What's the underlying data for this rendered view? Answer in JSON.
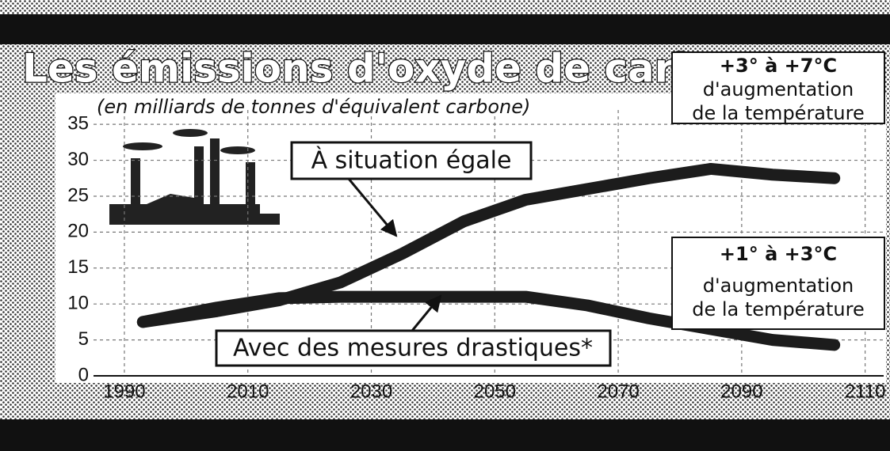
{
  "chart_data": {
    "type": "line",
    "title": "Les émissions d'oxyde de carbone",
    "subtitle": "(en milliards de tonnes d'équivalent carbone)",
    "x": [
      1993,
      2005,
      2015,
      2025,
      2035,
      2045,
      2055,
      2065,
      2075,
      2085,
      2095,
      2105
    ],
    "series": [
      {
        "name": "À situation égale",
        "color": "#1c1c1c",
        "values": [
          7.5,
          9,
          10.5,
          13,
          17,
          21.5,
          24.5,
          26,
          27.5,
          28.8,
          28,
          27.5
        ]
      },
      {
        "name": "Avec des mesures drastiques*",
        "color": "#1c1c1c",
        "values": [
          7.5,
          9.5,
          10.8,
          11,
          11,
          11,
          11,
          9.8,
          8,
          6.5,
          5,
          4.3
        ]
      }
    ],
    "xlim": [
      1985,
      2113
    ],
    "xticks": [
      1990,
      2010,
      2030,
      2050,
      2070,
      2090,
      2110
    ],
    "ylim": [
      0,
      37
    ],
    "yticks": [
      0,
      5,
      10,
      15,
      20,
      25,
      30,
      35
    ],
    "grid": true,
    "annotations": [
      {
        "lines": [
          "+3° à +7°C",
          "d'augmentation",
          "de la température"
        ]
      },
      {
        "lines": [
          "+1° à +3°C",
          "d'augmentation",
          "de la température"
        ]
      }
    ]
  }
}
